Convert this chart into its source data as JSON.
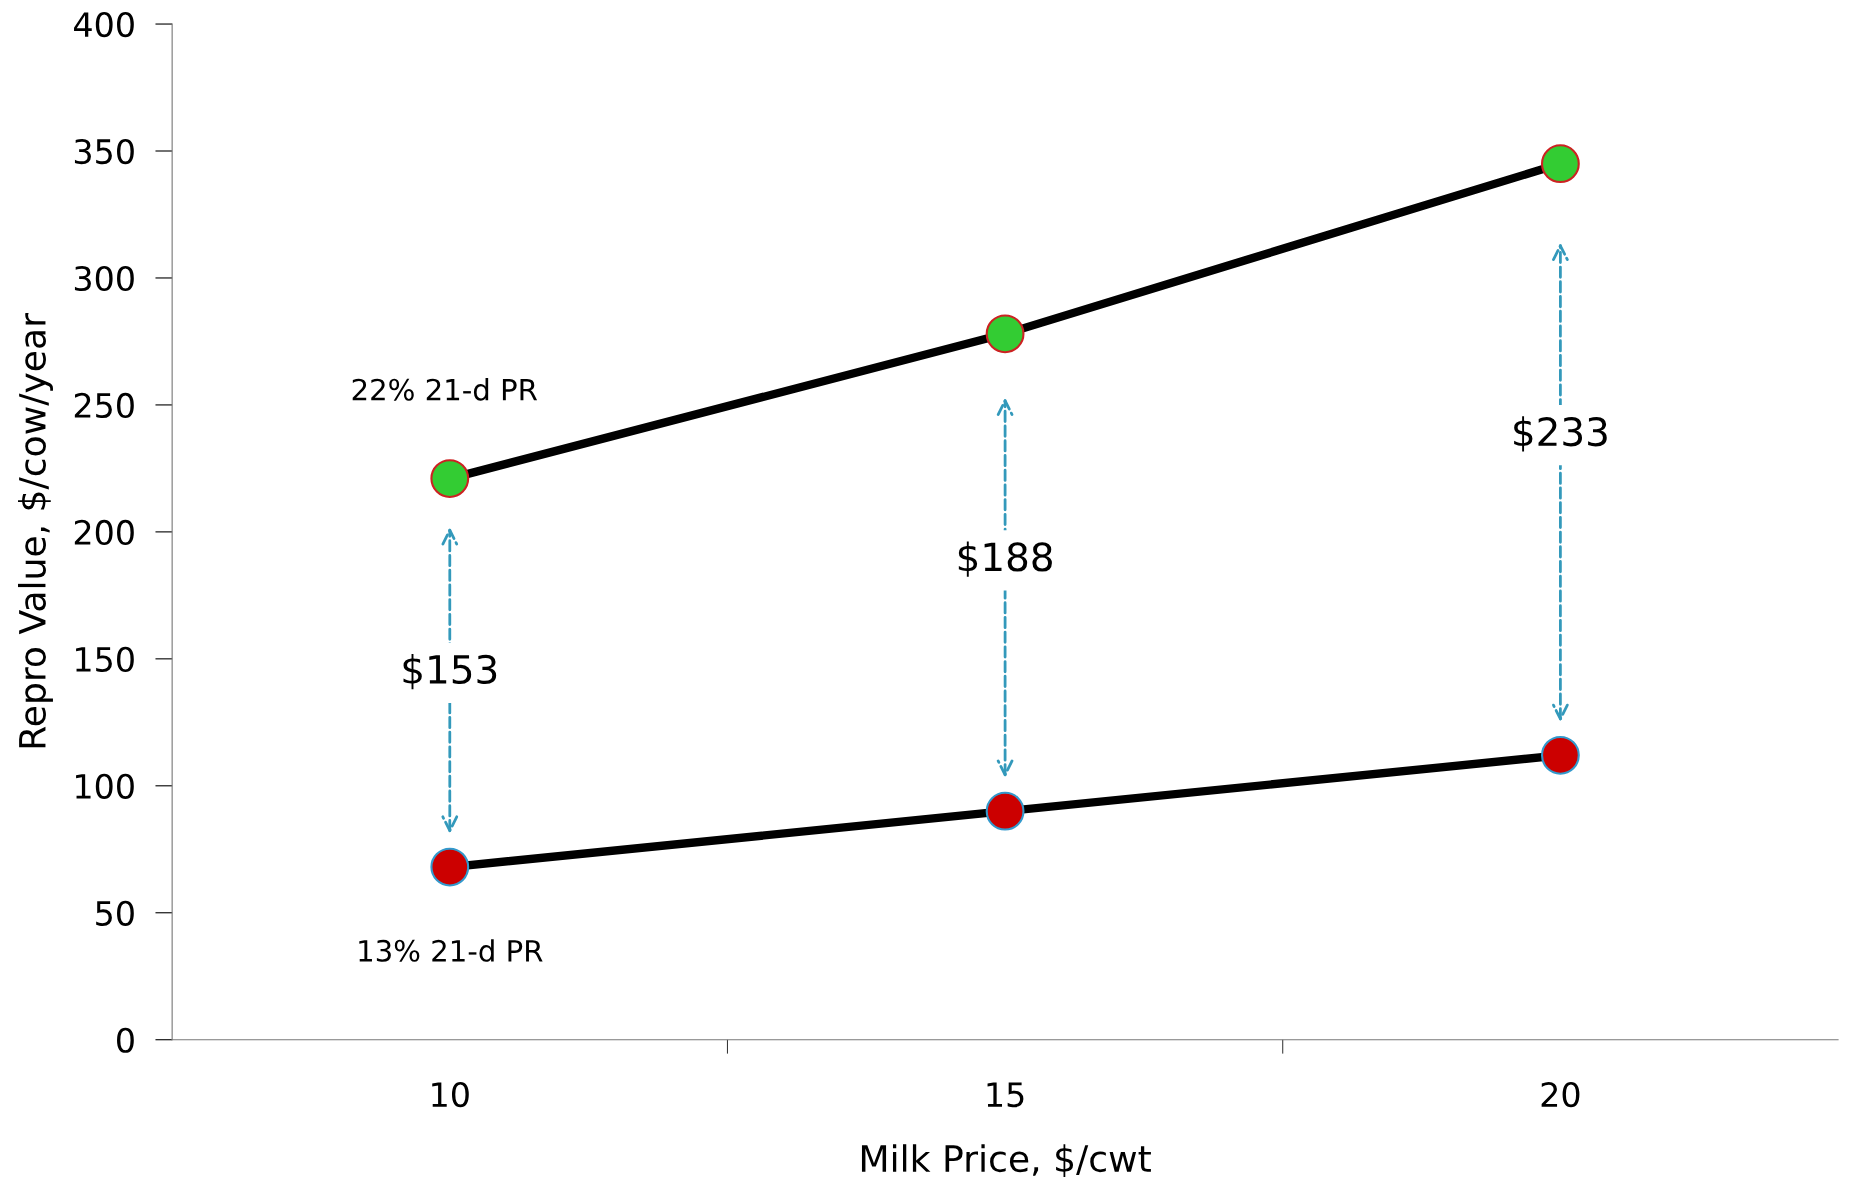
{
  "chart_data": {
    "type": "line",
    "xlabel": "Milk Price, $/cwt",
    "ylabel": "Repro Value, $/cow/year",
    "categories": [
      "10",
      "15",
      "20"
    ],
    "series": [
      {
        "name": "22% 21-d PR",
        "color": "#000000",
        "colors": [
          "#33cc33",
          "#33cc33",
          "#33cc33"
        ],
        "values": [
          221,
          278,
          345
        ]
      },
      {
        "name": "13% 21-d PR",
        "color": "#000000",
        "colors": [
          "#cc0000",
          "#cc0000",
          "#cc0000"
        ],
        "values": [
          68,
          90,
          112
        ]
      }
    ],
    "annotations": [
      "$153",
      "$188",
      "$233"
    ],
    "ylim": [
      0,
      400
    ],
    "yticks": [
      0,
      50,
      100,
      150,
      200,
      250,
      300,
      350,
      400
    ],
    "grid": false,
    "legend": false,
    "marker": "circle",
    "line_style": "solid"
  }
}
